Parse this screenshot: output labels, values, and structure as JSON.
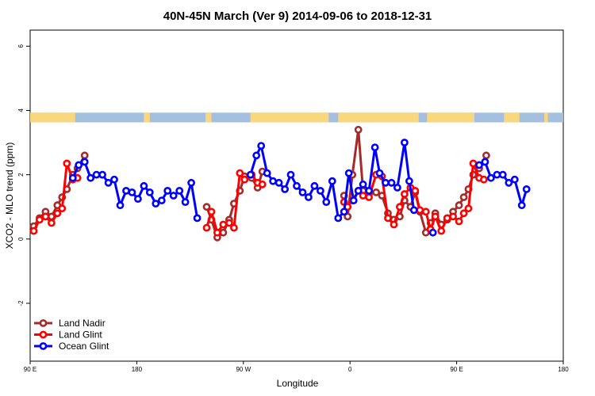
{
  "chart_data": {
    "type": "line",
    "title": "40N-45N March (Ver 9)   2014-09-06 to 2018-12-31",
    "xlabel": "Longitude",
    "ylabel": "XCO2 - MLO trend (ppm)",
    "ylim": [
      -3.8,
      6.5
    ],
    "xlim": [
      90,
      540
    ],
    "y_ticks": [
      -2,
      0,
      2,
      4,
      6
    ],
    "y_tick_labels": [
      "-2",
      "0",
      "2",
      "4",
      "6"
    ],
    "x_ticks": [
      90,
      180,
      270,
      360,
      450,
      540
    ],
    "x_tick_labels": [
      "90 E",
      "180",
      "90 W",
      "0",
      "90 E",
      "180"
    ],
    "legend_position": "bottom-left",
    "land_strip": {
      "y_range": [
        3.63,
        3.93
      ],
      "land_color": "#F9D77E",
      "ocean_color": "#A5BFE0",
      "land_segments": [
        [
          90,
          128
        ],
        [
          186,
          191
        ],
        [
          238,
          243
        ],
        [
          276,
          342
        ],
        [
          350,
          418
        ],
        [
          425,
          465
        ],
        [
          490,
          503
        ],
        [
          524,
          527
        ]
      ]
    },
    "series": [
      {
        "name": "Land Nadir",
        "color": "#A52A2A",
        "points": [
          [
            93,
            0.4
          ],
          [
            98,
            0.65
          ],
          [
            103,
            0.85
          ],
          [
            108,
            0.7
          ],
          [
            113,
            1.05
          ],
          [
            117,
            1.3
          ],
          [
            121,
            1.55
          ],
          [
            126,
            2.0
          ],
          [
            130,
            2.2
          ],
          [
            136,
            2.6
          ],
          null,
          [
            239,
            1.0
          ],
          [
            243,
            0.6
          ],
          [
            248,
            0.05
          ],
          [
            253,
            0.2
          ],
          [
            258,
            0.6
          ],
          [
            262,
            1.1
          ],
          [
            267,
            1.5
          ],
          [
            271,
            1.95
          ],
          [
            277,
            1.9
          ],
          [
            282,
            1.6
          ],
          [
            286,
            2.1
          ],
          null,
          [
            355,
            1.35
          ],
          [
            358,
            0.7
          ],
          [
            362,
            2.0
          ],
          [
            367,
            3.4
          ],
          [
            371,
            1.5
          ],
          [
            376,
            1.4
          ],
          [
            382,
            1.45
          ],
          [
            387,
            1.35
          ],
          [
            392,
            0.8
          ],
          [
            397,
            0.6
          ],
          [
            402,
            0.7
          ],
          [
            406,
            1.2
          ],
          [
            411,
            1.0
          ],
          [
            415,
            1.45
          ],
          [
            419,
            0.85
          ],
          [
            424,
            0.2
          ],
          [
            428,
            0.5
          ],
          [
            432,
            0.8
          ],
          [
            437,
            0.45
          ],
          [
            442,
            0.6
          ],
          [
            447,
            0.85
          ],
          [
            452,
            1.05
          ],
          [
            456,
            1.3
          ],
          [
            460,
            1.55
          ],
          [
            464,
            2.0
          ],
          [
            469,
            2.2
          ],
          [
            475,
            2.6
          ]
        ]
      },
      {
        "name": "Land Glint",
        "color": "#FF0000",
        "points": [
          [
            93,
            0.25
          ],
          [
            98,
            0.6
          ],
          [
            103,
            0.7
          ],
          [
            108,
            0.5
          ],
          [
            113,
            0.8
          ],
          [
            117,
            0.95
          ],
          [
            121,
            2.35
          ],
          [
            126,
            1.85
          ],
          [
            130,
            1.9
          ],
          null,
          [
            239,
            0.35
          ],
          [
            243,
            0.85
          ],
          [
            248,
            0.2
          ],
          [
            253,
            0.45
          ],
          [
            258,
            0.5
          ],
          [
            262,
            0.35
          ],
          [
            267,
            2.05
          ],
          [
            271,
            1.85
          ],
          [
            277,
            2.0
          ],
          [
            282,
            1.75
          ],
          [
            286,
            1.7
          ],
          null,
          [
            355,
            1.15
          ],
          [
            358,
            1.0
          ],
          [
            362,
            1.2
          ],
          [
            367,
            1.5
          ],
          [
            371,
            1.35
          ],
          [
            376,
            1.3
          ],
          [
            382,
            2.0
          ],
          [
            387,
            1.95
          ],
          [
            392,
            0.65
          ],
          [
            397,
            0.45
          ],
          [
            402,
            1.0
          ],
          [
            406,
            1.4
          ],
          [
            411,
            1.6
          ],
          [
            415,
            1.5
          ],
          [
            419,
            0.9
          ],
          [
            424,
            0.85
          ],
          [
            428,
            0.3
          ],
          [
            432,
            0.7
          ],
          [
            437,
            0.25
          ],
          [
            442,
            0.65
          ],
          [
            447,
            0.7
          ],
          [
            452,
            0.55
          ],
          [
            456,
            0.8
          ],
          [
            460,
            0.95
          ],
          [
            464,
            2.35
          ],
          [
            469,
            1.9
          ],
          [
            473,
            1.85
          ]
        ]
      },
      {
        "name": "Ocean Glint",
        "color": "#0000FF",
        "points": [
          [
            126,
            1.9
          ],
          [
            131,
            2.3
          ],
          [
            136,
            2.4
          ],
          [
            141,
            1.9
          ],
          [
            146,
            2.0
          ],
          [
            151,
            2.0
          ],
          [
            156,
            1.75
          ],
          [
            161,
            1.85
          ],
          [
            166,
            1.05
          ],
          [
            171,
            1.5
          ],
          [
            176,
            1.45
          ],
          [
            181,
            1.25
          ],
          [
            186,
            1.65
          ],
          [
            191,
            1.45
          ],
          [
            196,
            1.1
          ],
          [
            201,
            1.2
          ],
          [
            206,
            1.5
          ],
          [
            211,
            1.35
          ],
          [
            216,
            1.5
          ],
          [
            221,
            1.15
          ],
          [
            226,
            1.75
          ],
          [
            231,
            0.65
          ],
          null,
          [
            276,
            2.0
          ],
          [
            281,
            2.6
          ],
          [
            285,
            2.9
          ],
          [
            290,
            2.05
          ],
          [
            295,
            1.8
          ],
          [
            300,
            1.75
          ],
          [
            305,
            1.55
          ],
          [
            310,
            2.0
          ],
          [
            315,
            1.65
          ],
          [
            320,
            1.45
          ],
          [
            325,
            1.3
          ],
          [
            330,
            1.65
          ],
          [
            335,
            1.5
          ],
          [
            340,
            1.15
          ],
          [
            345,
            1.8
          ],
          [
            350,
            0.65
          ],
          [
            355,
            0.85
          ],
          [
            359,
            2.05
          ],
          [
            363,
            1.2
          ],
          [
            367,
            1.5
          ],
          [
            371,
            1.7
          ],
          [
            376,
            1.5
          ],
          [
            381,
            2.85
          ],
          [
            385,
            2.05
          ],
          [
            390,
            1.75
          ],
          [
            395,
            1.75
          ],
          [
            400,
            1.6
          ],
          [
            406,
            3.0
          ],
          [
            410,
            1.8
          ],
          [
            414,
            0.9
          ],
          null,
          [
            430,
            0.2
          ],
          null,
          [
            469,
            2.3
          ],
          [
            474,
            2.4
          ],
          [
            479,
            1.9
          ],
          [
            484,
            2.0
          ],
          [
            489,
            2.0
          ],
          [
            494,
            1.75
          ],
          [
            499,
            1.85
          ],
          [
            505,
            1.05
          ],
          [
            509,
            1.55
          ]
        ]
      }
    ]
  }
}
